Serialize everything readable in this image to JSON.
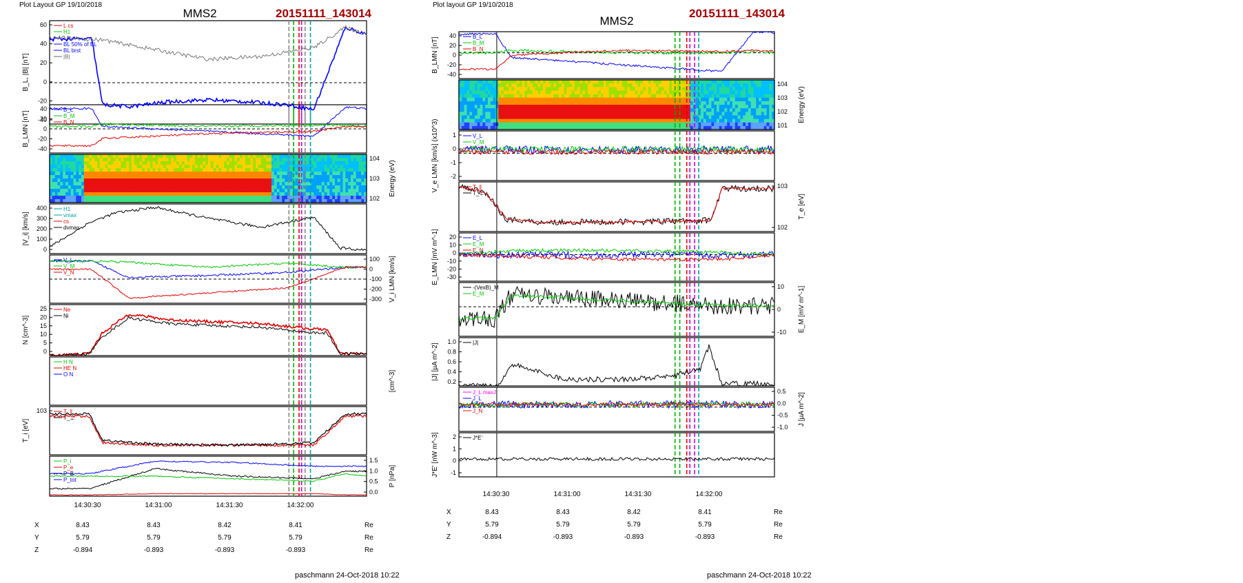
{
  "left_page": {
    "layout_label": "Plot Layout GP 19/10/2018",
    "spacecraft": "MMS2",
    "event_id": "20151111_143014",
    "footer": "paschmann 24-Oct-2018 10:22",
    "panels": {
      "bl": {
        "ylabel": "B_L, |B| [nT]",
        "ticks": [
          "60",
          "40",
          "20",
          "0",
          "-20",
          "-40"
        ],
        "legend": [
          "L cs",
          "H1",
          "L1",
          "BL 50% of BL",
          "BL brst",
          "|B|"
        ]
      },
      "blmn": {
        "ylabel": "B_LMN [nT]",
        "ticks": [
          "40",
          "20",
          "0",
          "-20",
          "-40"
        ],
        "legend": [
          "B_L",
          "B_M",
          "B_N"
        ]
      },
      "spec": {
        "ylabel": "Energy (eV)",
        "ticks": [
          "10^4",
          "10^3",
          "10^2"
        ]
      },
      "vi": {
        "ylabel": "|V_i| [km/s]",
        "ticks": [
          "400",
          "300",
          "200",
          "100",
          "0"
        ],
        "legend": [
          "H1",
          "vmax",
          "cs",
          "dvmax"
        ]
      },
      "vilmn": {
        "ylabel": "V_i LMN [km/s]",
        "ticks": [
          "100",
          "0",
          "-100",
          "-200",
          "-300"
        ],
        "legend": [
          "V_L",
          "V_M",
          "V_N"
        ]
      },
      "n": {
        "ylabel": "N [cm^-3]",
        "ticks": [
          "25",
          "20",
          "15",
          "10",
          "5",
          "0"
        ],
        "legend": [
          "Ne",
          "Ni"
        ]
      },
      "hn": {
        "ylabel": "[cm^-3]",
        "legend": [
          "H N",
          "HE N",
          "O N"
        ]
      },
      "ti": {
        "ylabel": "T_i [eV]",
        "ticks": [
          "10^3"
        ],
        "legend": [
          "T_∥",
          "T_⊥"
        ]
      },
      "p": {
        "ylabel": "P [nPa]",
        "ticks": [
          "1.5",
          "1.0",
          "0.5",
          "0.0"
        ],
        "legend": [
          "P_i",
          "P_e",
          "P_B",
          "P_tot"
        ]
      }
    },
    "time_ticks": [
      "14:30:30",
      "14:31:00",
      "14:31:30",
      "14:32:00"
    ],
    "ephemeris": {
      "rows": [
        {
          "label": "X",
          "values": [
            "8.43",
            "8.43",
            "8.42",
            "8.41"
          ],
          "unit": "Re"
        },
        {
          "label": "Y",
          "values": [
            "5.79",
            "5.79",
            "5.79",
            "5.79"
          ],
          "unit": "Re"
        },
        {
          "label": "Z",
          "values": [
            "-0.894",
            "-0.893",
            "-0.893",
            "-0.893"
          ],
          "unit": "Re"
        }
      ]
    }
  },
  "right_page": {
    "layout_label": "Plot layout GP 19/10/2018",
    "spacecraft": "MMS2",
    "event_id": "20151111_143014",
    "footer": "paschmann 24-Oct-2018 10:22",
    "panels": {
      "blmn": {
        "ylabel": "B_LMN [nT]",
        "ticks": [
          "40",
          "20",
          "0",
          "-20",
          "-40"
        ],
        "legend": [
          "B_L",
          "B_M",
          "B_N"
        ]
      },
      "spec": {
        "ylabel": "Energy (eV)",
        "ticks": [
          "10^4",
          "10^3",
          "10^2",
          "10^1"
        ]
      },
      "ve": {
        "ylabel": "V_e LMN [km/s] (x10^3)",
        "ticks": [
          "1",
          "0",
          "-1",
          "-2"
        ],
        "legend": [
          "V_L",
          "V_M",
          "V_N"
        ]
      },
      "te": {
        "ylabel": "T_e [eV]",
        "ticks": [
          "10^3",
          "10^2"
        ],
        "legend": [
          "T_∥",
          "T_⊥"
        ]
      },
      "e": {
        "ylabel": "E_LMN [mV m^-1]",
        "ticks": [
          "20",
          "10",
          "0",
          "-10",
          "-20",
          "-30"
        ],
        "legend": [
          "E_L",
          "E_M",
          "E_N"
        ]
      },
      "em": {
        "ylabel": "E_M [mV m^-1]",
        "ticks": [
          "10",
          "0",
          "-10"
        ],
        "legend": [
          "-(VexB)_M",
          "E_M"
        ]
      },
      "j": {
        "ylabel": "|J| [µA m^-2]",
        "ticks": [
          "1.0",
          "0.8",
          "0.6",
          "0.4",
          "0.2"
        ],
        "legend": [
          "|J|"
        ]
      },
      "jlmn": {
        "ylabel": "J [µA m^-2]",
        "ticks": [
          "0.5",
          "0.0",
          "-0.5",
          "-1.0"
        ],
        "legend": [
          "J_L maxJ",
          "J_L",
          "J_M",
          "J_N"
        ]
      },
      "je": {
        "ylabel": "J*E' [nW m^-3]",
        "ticks": [
          "2",
          "1",
          "0",
          "-1"
        ],
        "legend": [
          "J*E'"
        ]
      }
    },
    "time_ticks": [
      "14:30:30",
      "14:31:00",
      "14:31:30",
      "14:32:00"
    ],
    "ephemeris": {
      "rows": [
        {
          "label": "X",
          "values": [
            "8.43",
            "8.43",
            "8.42",
            "8.41"
          ],
          "unit": "Re"
        },
        {
          "label": "Y",
          "values": [
            "5.79",
            "5.79",
            "5.79",
            "5.79"
          ],
          "unit": "Re"
        },
        {
          "label": "Z",
          "values": [
            "-0.894",
            "-0.893",
            "-0.893",
            "-0.893"
          ],
          "unit": "Re"
        }
      ]
    }
  },
  "colors": {
    "red": "#e00000",
    "green": "#00c800",
    "blue": "#0000ff",
    "black": "#000000",
    "magenta": "#ff00ff",
    "title_red": "#a00000"
  },
  "chart_data": [
    {
      "type": "line",
      "title": "MMS2 20151111_143014 (left)",
      "x_time_range": [
        "14:30:10",
        "14:32:30"
      ],
      "series": [
        {
          "name": "B_L",
          "panel": "bl",
          "x": [
            0,
            16,
            20,
            30,
            45,
            60,
            75,
            90,
            100,
            112,
            120
          ],
          "values": [
            43,
            43,
            -25,
            -27,
            -22,
            -20,
            -22,
            -25,
            -30,
            55,
            48
          ]
        },
        {
          "name": "|B|",
          "panel": "bl",
          "x": [
            0,
            20,
            40,
            60,
            80,
            100,
            112,
            120
          ],
          "values": [
            45,
            42,
            32,
            22,
            25,
            34,
            55,
            48
          ]
        },
        {
          "name": "|V_i|",
          "panel": "vi",
          "x": [
            0,
            15,
            25,
            40,
            60,
            80,
            100,
            110,
            120
          ],
          "values": [
            60,
            280,
            370,
            420,
            320,
            240,
            330,
            50,
            30
          ]
        },
        {
          "name": "Ne",
          "panel": "n",
          "x": [
            0,
            15,
            20,
            30,
            45,
            60,
            80,
            100,
            105,
            110,
            120
          ],
          "values": [
            0,
            1,
            12,
            22,
            19,
            18,
            17,
            14,
            14,
            1,
            1
          ]
        },
        {
          "name": "Ni",
          "panel": "n",
          "x": [
            0,
            15,
            20,
            30,
            45,
            60,
            80,
            100,
            105,
            110,
            120
          ],
          "values": [
            0,
            1,
            10,
            20,
            17,
            16,
            15,
            12,
            12,
            1,
            1
          ]
        }
      ]
    },
    {
      "type": "line",
      "title": "MMS2 20151111_143014 (right)",
      "x_time_range": [
        "14:30:10",
        "14:32:30"
      ],
      "series": [
        {
          "name": "|J|",
          "panel": "j",
          "x": [
            0,
            15,
            20,
            40,
            60,
            80,
            92,
            95,
            100,
            120
          ],
          "values": [
            0,
            0,
            0.5,
            0.15,
            0.15,
            0.2,
            0.4,
            0.9,
            0.05,
            0.05
          ]
        },
        {
          "name": "T_e",
          "panel": "te",
          "x": [
            0,
            10,
            18,
            30,
            60,
            90,
            96,
            100,
            120
          ],
          "values": [
            1200,
            900,
            200,
            170,
            170,
            180,
            190,
            1100,
            1100
          ]
        }
      ]
    }
  ]
}
